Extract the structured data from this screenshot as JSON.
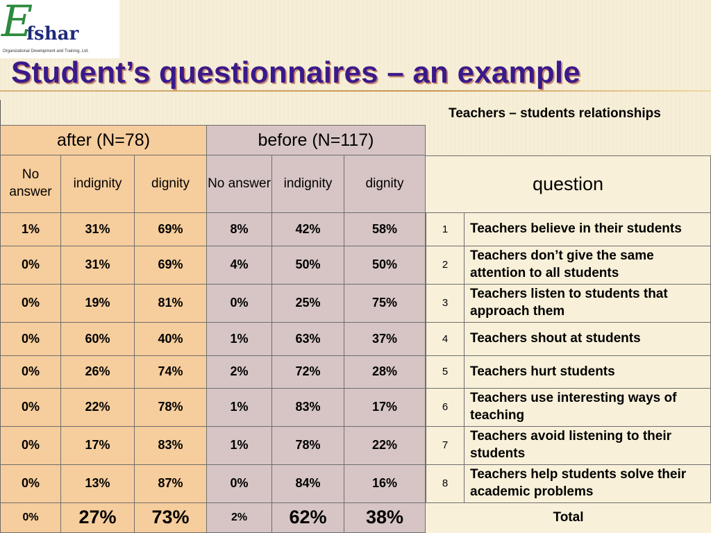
{
  "logo": {
    "glyph": "E",
    "brand": "fshar",
    "tagline": "Organizational Development and Training, Ltd."
  },
  "title": "Student’s questionnaires – an example",
  "subtitle": "Teachers – students relationships",
  "groups": {
    "after": "after (N=78)",
    "before": "before (N=117)"
  },
  "columns": {
    "no_answer": "No answer",
    "indignity": "indignity",
    "dignity": "dignity",
    "question": "question"
  },
  "rows": [
    {
      "num": "1",
      "question": "Teachers believe in their students",
      "after": [
        "1%",
        "31%",
        "69%"
      ],
      "before": [
        "8%",
        "42%",
        "58%"
      ]
    },
    {
      "num": "2",
      "question": "Teachers don’t give the same attention to all students",
      "after": [
        "0%",
        "31%",
        "69%"
      ],
      "before": [
        "4%",
        "50%",
        "50%"
      ]
    },
    {
      "num": "3",
      "question": "Teachers listen to students that approach them",
      "after": [
        "0%",
        "19%",
        "81%"
      ],
      "before": [
        "0%",
        "25%",
        "75%"
      ]
    },
    {
      "num": "4",
      "question": "Teachers shout at students",
      "after": [
        "0%",
        "60%",
        "40%"
      ],
      "before": [
        "1%",
        "63%",
        "37%"
      ]
    },
    {
      "num": "5",
      "question": "Teachers hurt students",
      "after": [
        "0%",
        "26%",
        "74%"
      ],
      "before": [
        "2%",
        "72%",
        "28%"
      ]
    },
    {
      "num": "6",
      "question": "Teachers use interesting ways of teaching",
      "after": [
        "0%",
        "22%",
        "78%"
      ],
      "before": [
        "1%",
        "83%",
        "17%"
      ]
    },
    {
      "num": "7",
      "question": "Teachers avoid listening to their students",
      "after": [
        "0%",
        "17%",
        "83%"
      ],
      "before": [
        "1%",
        "78%",
        "22%"
      ]
    },
    {
      "num": "8",
      "question": "Teachers help students solve their academic problems",
      "after": [
        "0%",
        "13%",
        "87%"
      ],
      "before": [
        "0%",
        "84%",
        "16%"
      ]
    }
  ],
  "total": {
    "label": "Total",
    "after": [
      "0%",
      "27%",
      "73%"
    ],
    "before": [
      "2%",
      "62%",
      "38%"
    ]
  },
  "colors": {
    "after_fill": "#f6cd9c",
    "before_fill": "#d7c5c5",
    "question_fill": "#f8f0d9",
    "title": "#3a1a8a"
  }
}
